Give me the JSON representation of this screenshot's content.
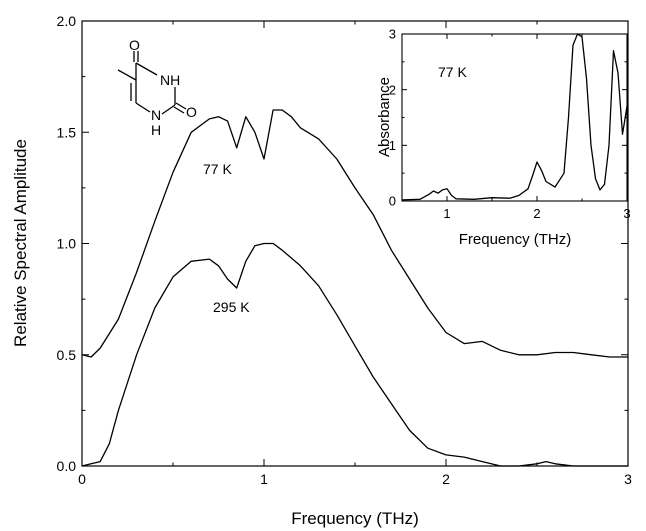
{
  "chart_data": [
    {
      "type": "line",
      "xlabel": "Frequency (THz)",
      "ylabel": "Relative Spectral Amplitude",
      "xlim": [
        0,
        3
      ],
      "ylim": [
        0,
        2
      ],
      "x_ticks": [
        "0",
        "1",
        "2",
        "3"
      ],
      "y_ticks": [
        "0.0",
        "0.5",
        "1.0",
        "1.5",
        "2.0"
      ],
      "grid": false,
      "annotations": [
        "77 K",
        "295 K"
      ],
      "series": [
        {
          "name": "77 K",
          "x": [
            0,
            0.05,
            0.1,
            0.2,
            0.3,
            0.4,
            0.5,
            0.6,
            0.7,
            0.75,
            0.8,
            0.85,
            0.9,
            0.95,
            1.0,
            1.05,
            1.1,
            1.15,
            1.2,
            1.3,
            1.4,
            1.5,
            1.6,
            1.7,
            1.8,
            1.9,
            2.0,
            2.1,
            2.2,
            2.3,
            2.4,
            2.5,
            2.6,
            2.7,
            2.8,
            2.9,
            3.0
          ],
          "y": [
            0.5,
            0.49,
            0.53,
            0.66,
            0.87,
            1.1,
            1.32,
            1.5,
            1.56,
            1.57,
            1.55,
            1.43,
            1.57,
            1.5,
            1.38,
            1.6,
            1.6,
            1.57,
            1.52,
            1.47,
            1.38,
            1.25,
            1.13,
            0.97,
            0.84,
            0.71,
            0.6,
            0.55,
            0.56,
            0.52,
            0.5,
            0.5,
            0.51,
            0.51,
            0.5,
            0.49,
            0.49
          ]
        },
        {
          "name": "295 K",
          "x": [
            0,
            0.05,
            0.1,
            0.15,
            0.2,
            0.3,
            0.4,
            0.5,
            0.6,
            0.7,
            0.75,
            0.8,
            0.85,
            0.9,
            0.95,
            1.0,
            1.05,
            1.1,
            1.2,
            1.3,
            1.4,
            1.5,
            1.6,
            1.7,
            1.8,
            1.9,
            2.0,
            2.1,
            2.2,
            2.3,
            2.4,
            2.5,
            2.55,
            2.6,
            2.7,
            2.8,
            2.9,
            3.0
          ],
          "y": [
            0.0,
            0.01,
            0.02,
            0.1,
            0.25,
            0.5,
            0.71,
            0.85,
            0.92,
            0.93,
            0.9,
            0.84,
            0.8,
            0.92,
            0.99,
            1.0,
            1.0,
            0.97,
            0.9,
            0.81,
            0.68,
            0.54,
            0.4,
            0.28,
            0.16,
            0.08,
            0.05,
            0.04,
            0.02,
            0.0,
            0.0,
            0.01,
            0.02,
            0.01,
            0.0,
            0.0,
            0.0,
            0.0
          ]
        }
      ],
      "inset": {
        "type": "line",
        "label": "77 K",
        "xlabel": "Frequency (THz)",
        "ylabel": "Absorbance",
        "xlim": [
          0.5,
          3
        ],
        "ylim": [
          0,
          3
        ],
        "x_ticks": [
          "1",
          "2",
          "3"
        ],
        "y_ticks": [
          "0",
          "1",
          "2",
          "3"
        ],
        "series": [
          {
            "name": "77 K",
            "x": [
              0.5,
              0.7,
              0.8,
              0.85,
              0.9,
              0.95,
              1.0,
              1.05,
              1.1,
              1.3,
              1.5,
              1.7,
              1.8,
              1.9,
              1.95,
              2.0,
              2.05,
              2.1,
              2.2,
              2.3,
              2.35,
              2.4,
              2.45,
              2.5,
              2.55,
              2.6,
              2.65,
              2.7,
              2.75,
              2.8,
              2.85,
              2.9,
              2.95,
              3.0
            ],
            "y": [
              0.02,
              0.03,
              0.12,
              0.18,
              0.14,
              0.2,
              0.22,
              0.1,
              0.04,
              0.03,
              0.06,
              0.05,
              0.1,
              0.22,
              0.45,
              0.7,
              0.55,
              0.35,
              0.25,
              0.5,
              1.5,
              2.8,
              3.0,
              2.95,
              2.2,
              1.0,
              0.4,
              0.2,
              0.3,
              1.0,
              2.7,
              2.3,
              1.2,
              1.7
            ]
          }
        ]
      }
    }
  ],
  "molecule": {
    "atoms": [
      "O",
      "NH",
      "O",
      "N",
      "H"
    ]
  }
}
